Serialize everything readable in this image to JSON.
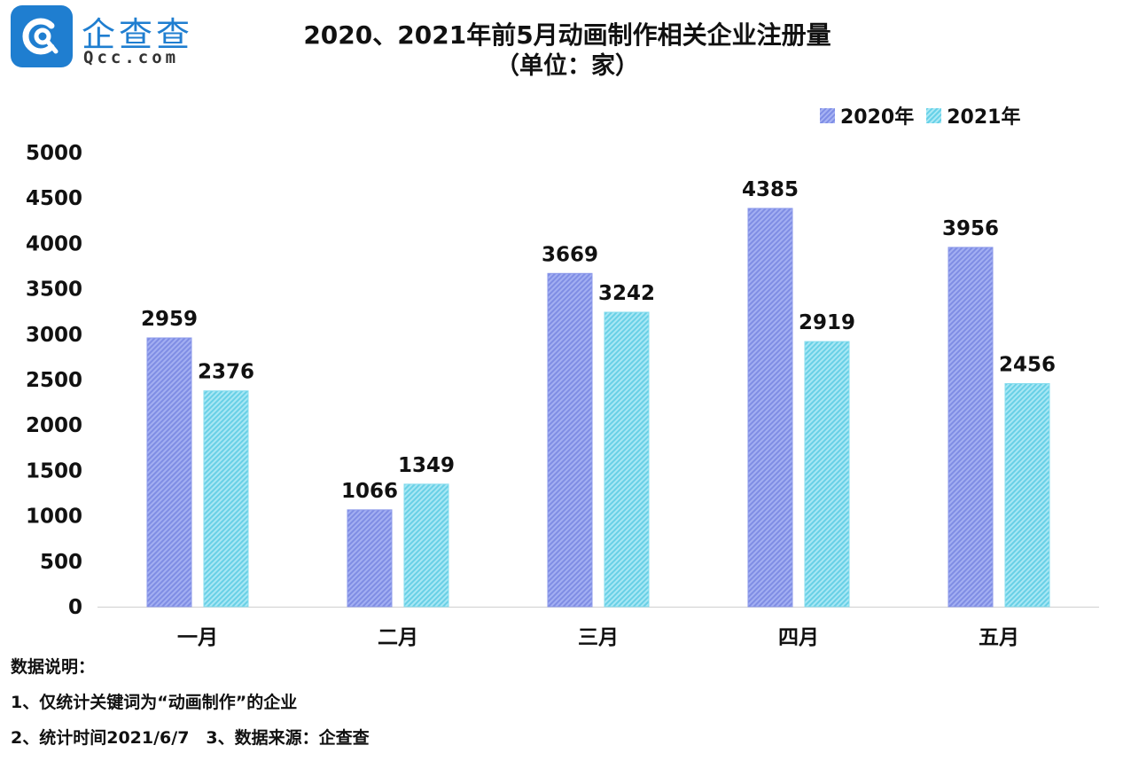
{
  "brand": {
    "name": "企查查",
    "domain": "Qcc.com"
  },
  "chart_data": {
    "type": "bar",
    "title": "2020、2021年前5月动画制作相关企业注册量",
    "subtitle": "（单位：家）",
    "categories": [
      "一月",
      "二月",
      "三月",
      "四月",
      "五月"
    ],
    "series": [
      {
        "name": "2020年",
        "values": [
          2959,
          1066,
          3669,
          4385,
          3956
        ],
        "color": "#8b98ea"
      },
      {
        "name": "2021年",
        "values": [
          2376,
          1349,
          3242,
          2919,
          2456
        ],
        "color": "#86dcee"
      }
    ],
    "ylim": [
      0,
      5000
    ],
    "yticks": [
      0,
      500,
      1000,
      1500,
      2000,
      2500,
      3000,
      3500,
      4000,
      4500,
      5000
    ],
    "xlabel": "",
    "ylabel": "",
    "legend": "top-right",
    "grid": false
  },
  "notes": {
    "heading": "数据说明：",
    "line1": "1、仅统计关键词为“动画制作”的企业",
    "line2": "2、统计时间2021/6/7　3、数据来源：企查查"
  }
}
